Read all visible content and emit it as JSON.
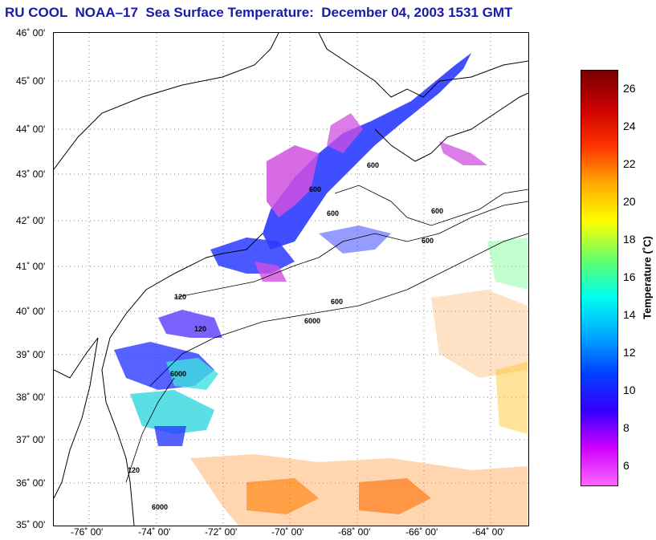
{
  "title": "RU COOL  NOAA–17  Sea Surface Temperature:  December 04, 2003 1531 GMT",
  "map": {
    "lat_labels": [
      "46˚ 00'",
      "45˚ 00'",
      "44˚ 00'",
      "43˚ 00'",
      "42˚ 00'",
      "41˚ 00'",
      "40˚ 00'",
      "39˚ 00'",
      "38˚ 00'",
      "37˚ 00'",
      "36˚ 00'",
      "35˚ 00'"
    ],
    "lon_labels": [
      "-76˚ 00'",
      "-74˚ 00'",
      "-72˚ 00'",
      "-70˚ 00'",
      "-68˚ 00'",
      "-66˚ 00'",
      "-64˚ 00'"
    ],
    "isobath_labels": [
      "600",
      "600",
      "600",
      "600",
      "600",
      "120",
      "120",
      "600",
      "6000",
      "6000",
      "120",
      "6000"
    ]
  },
  "colorbar": {
    "title": "Temperature (˚C)",
    "ticks": [
      "26",
      "24",
      "22",
      "20",
      "18",
      "16",
      "14",
      "12",
      "10",
      "8",
      "6"
    ],
    "stops": [
      "#ff66ff",
      "#cc00ff",
      "#3300ff",
      "#0044ff",
      "#00aaff",
      "#00ffee",
      "#66ff66",
      "#ffff00",
      "#ffaa00",
      "#ff3300",
      "#cc0000",
      "#770000"
    ]
  },
  "colors": {
    "title": "#1a1aa8",
    "cold_magenta": "#e040e0",
    "blue": "#2233ff",
    "cyan": "#40e0e0",
    "orange": "#ff8800",
    "coast": "#000000"
  }
}
